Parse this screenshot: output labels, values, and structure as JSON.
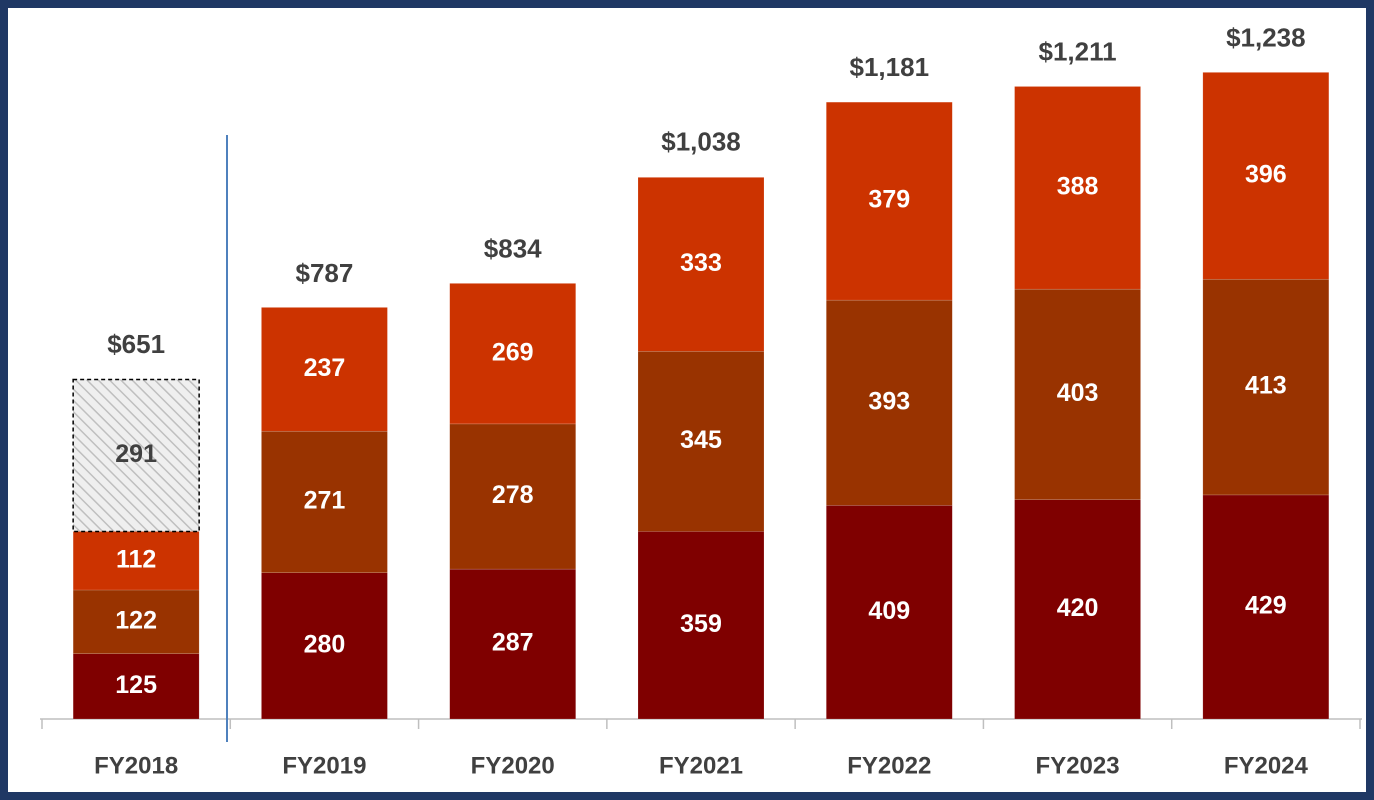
{
  "chart_data": {
    "type": "stacked_bar",
    "categories": [
      "FY2018",
      "FY2019",
      "FY2020",
      "FY2021",
      "FY2022",
      "FY2023",
      "FY2024"
    ],
    "series": [
      {
        "color": "#7f0000",
        "values": [
          125,
          280,
          287,
          359,
          409,
          420,
          429
        ]
      },
      {
        "color": "#993300",
        "values": [
          122,
          271,
          278,
          345,
          393,
          403,
          413
        ]
      },
      {
        "color": "#cc3300",
        "values": [
          112,
          237,
          269,
          333,
          379,
          388,
          396
        ]
      },
      {
        "color": "#d9d9d9",
        "hatch": true,
        "values": [
          291,
          null,
          null,
          null,
          null,
          null,
          null
        ]
      }
    ],
    "totals": {
      "values": [
        651,
        787,
        834,
        1038,
        1181,
        1211,
        1238
      ],
      "value_labels": [
        "$651",
        "$787",
        "$834",
        "$1,038",
        "$1,181",
        "$1,211",
        "$1,238"
      ]
    },
    "ylim": [
      0,
      1300
    ]
  }
}
